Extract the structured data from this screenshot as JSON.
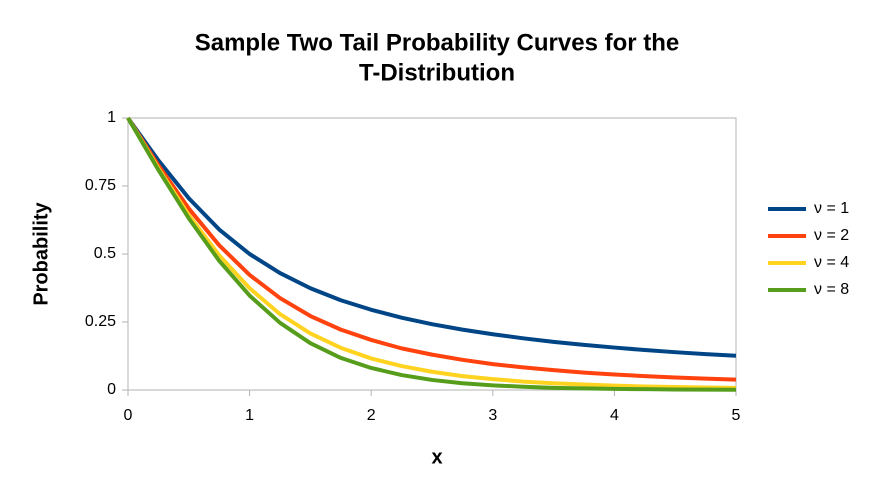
{
  "chart_data": {
    "type": "line",
    "title": [
      "Sample Two Tail Probability Curves for the",
      "T-Distribution"
    ],
    "x_label": "x",
    "y_label": "Probability",
    "x": [
      0,
      0.25,
      0.5,
      0.75,
      1,
      1.25,
      1.5,
      1.75,
      2,
      2.25,
      2.5,
      2.75,
      3,
      3.25,
      3.5,
      3.75,
      4,
      4.25,
      4.5,
      4.75,
      5
    ],
    "series": [
      {
        "name": "ν = 1",
        "color": "#004586",
        "values": [
          1,
          0.844,
          0.705,
          0.59,
          0.5,
          0.43,
          0.374,
          0.33,
          0.295,
          0.266,
          0.242,
          0.222,
          0.205,
          0.19,
          0.177,
          0.166,
          0.156,
          0.147,
          0.139,
          0.132,
          0.126
        ]
      },
      {
        "name": "ν = 2",
        "color": "#ff420e",
        "values": [
          1,
          0.826,
          0.667,
          0.532,
          0.423,
          0.338,
          0.272,
          0.222,
          0.184,
          0.153,
          0.13,
          0.111,
          0.095,
          0.083,
          0.073,
          0.064,
          0.057,
          0.051,
          0.046,
          0.042,
          0.038
        ]
      },
      {
        "name": "ν = 4",
        "color": "#ffd320",
        "values": [
          1,
          0.815,
          0.643,
          0.495,
          0.374,
          0.279,
          0.208,
          0.155,
          0.116,
          0.088,
          0.067,
          0.051,
          0.04,
          0.031,
          0.025,
          0.02,
          0.016,
          0.013,
          0.011,
          0.009,
          0.008
        ]
      },
      {
        "name": "ν = 8",
        "color": "#579d1c",
        "values": [
          1,
          0.809,
          0.631,
          0.475,
          0.347,
          0.247,
          0.172,
          0.118,
          0.081,
          0.055,
          0.037,
          0.025,
          0.017,
          0.012,
          0.008,
          0.006,
          0.004,
          0.003,
          0.002,
          0.0015,
          0.001
        ]
      }
    ],
    "xlim": [
      0,
      5
    ],
    "xticks": [
      0,
      1,
      2,
      3,
      4,
      5
    ],
    "ylim": [
      0,
      1
    ],
    "yticks": [
      0,
      0.25,
      0.5,
      0.75,
      1
    ],
    "grid": false,
    "legend": "right"
  }
}
